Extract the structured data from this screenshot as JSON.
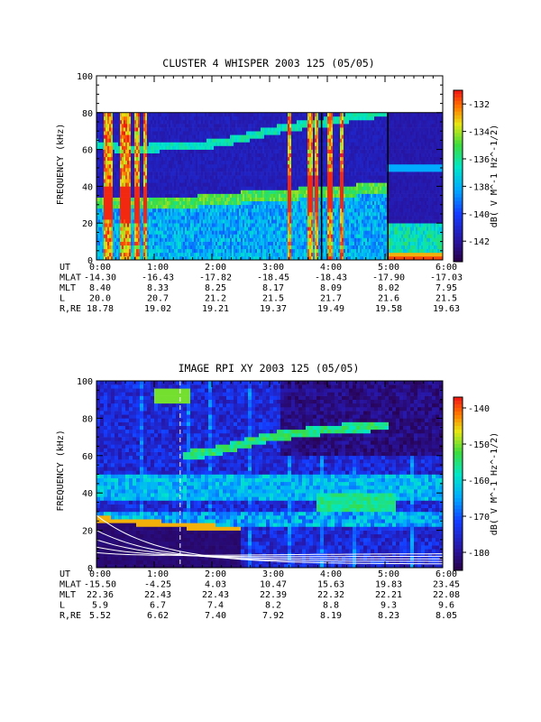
{
  "chart_data": [
    {
      "type": "heatmap",
      "title": "CLUSTER 4 WHISPER 2003 125 (05/05)",
      "ylabel": "FREQUENCY (kHz)",
      "xlabel": "",
      "ylim": [
        0,
        100
      ],
      "xlim": [
        0,
        6
      ],
      "y_ticks": [
        "0",
        "20",
        "40",
        "60",
        "80",
        "100"
      ],
      "x_ticks": [
        "0:00",
        "1:00",
        "2:00",
        "3:00",
        "4:00",
        "5:00",
        "6:00"
      ],
      "data_ymax": 80,
      "colorbar": {
        "label": "dB( V M^-1 Hz^-1/2)",
        "range": [
          -143.5,
          -131
        ],
        "ticks": [
          "-132",
          "-134",
          "-136",
          "-138",
          "-140",
          "-142"
        ],
        "tick_values": [
          -132,
          -134,
          -136,
          -138,
          -140,
          -142
        ]
      },
      "table": {
        "row_labels": [
          "UT",
          "MLAT",
          "MLT",
          "L",
          "R,RE"
        ],
        "rows": [
          [
            "0:00",
            "1:00",
            "2:00",
            "3:00",
            "4:00",
            "5:00",
            "6:00"
          ],
          [
            "-14.30",
            "-16.43",
            "-17.82",
            "-18.45",
            "-18.43",
            "-17.90",
            "-17.03"
          ],
          [
            "8.40",
            "8.33",
            "8.25",
            "8.17",
            "8.09",
            "8.02",
            "7.95"
          ],
          [
            "20.0",
            "20.7",
            "21.2",
            "21.5",
            "21.7",
            "21.6",
            "21.5"
          ],
          [
            "18.78",
            "19.02",
            "19.21",
            "19.37",
            "19.49",
            "19.58",
            "19.63"
          ]
        ]
      },
      "features": {
        "upper_band": [
          [
            0,
            63
          ],
          [
            0.5,
            60
          ],
          [
            1,
            61
          ],
          [
            1.5,
            62
          ],
          [
            2,
            63
          ],
          [
            2.5,
            66
          ],
          [
            3,
            70
          ],
          [
            3.5,
            73
          ],
          [
            4,
            75
          ],
          [
            4.5,
            78
          ],
          [
            5,
            80
          ]
        ],
        "upper_band_late": [
          [
            5.0,
            50
          ],
          [
            6,
            50
          ]
        ],
        "lower_band": [
          [
            0,
            31
          ],
          [
            0.5,
            31
          ],
          [
            1,
            30
          ],
          [
            1.5,
            31
          ],
          [
            2,
            33
          ],
          [
            2.5,
            34
          ],
          [
            3,
            35
          ],
          [
            3.5,
            36
          ],
          [
            4,
            37
          ],
          [
            4.5,
            38
          ],
          [
            5,
            39
          ]
        ],
        "vertical_bursts": [
          0.17,
          0.25,
          0.45,
          0.55,
          0.7,
          0.85,
          3.35,
          3.7,
          3.82,
          4.05,
          4.25
        ],
        "black_lines": [
          3.9,
          5.05
        ]
      }
    },
    {
      "type": "heatmap",
      "title": "IMAGE RPI XY 2003 125 (05/05)",
      "ylabel": "FREQUENCY (kHz)",
      "xlabel": "",
      "ylim": [
        0,
        100
      ],
      "xlim": [
        0,
        6
      ],
      "y_ticks": [
        "0",
        "20",
        "40",
        "60",
        "80",
        "100"
      ],
      "x_ticks": [
        "0:00",
        "1:00",
        "2:00",
        "3:00",
        "4:00",
        "5:00",
        "6:00"
      ],
      "colorbar": {
        "label": "dB( V M^-1 Hz^-1/2)",
        "range": [
          -185,
          -137
        ],
        "ticks": [
          "-140",
          "-150",
          "-160",
          "-170",
          "-180"
        ],
        "tick_values": [
          -140,
          -150,
          -160,
          -170,
          -180
        ]
      },
      "table": {
        "row_labels": [
          "UT",
          "MLAT",
          "MLT",
          "L",
          "R,RE"
        ],
        "rows": [
          [
            "0:00",
            "1:00",
            "2:00",
            "3:00",
            "4:00",
            "5:00",
            "6:00"
          ],
          [
            "-15.50",
            "-4.25",
            "4.03",
            "10.47",
            "15.63",
            "19.83",
            "23.45"
          ],
          [
            "22.36",
            "22.43",
            "22.43",
            "22.39",
            "22.32",
            "22.21",
            "22.08"
          ],
          [
            "5.9",
            "6.7",
            "7.4",
            "8.2",
            "8.8",
            "9.3",
            "9.6"
          ],
          [
            "5.52",
            "6.62",
            "7.40",
            "7.92",
            "8.19",
            "8.23",
            "8.05"
          ]
        ]
      },
      "features": {
        "upper_band": [
          [
            1.5,
            60
          ],
          [
            2,
            62
          ],
          [
            2.5,
            66
          ],
          [
            3,
            70
          ],
          [
            3.5,
            72
          ],
          [
            4,
            74
          ],
          [
            4.5,
            75
          ],
          [
            5,
            76
          ]
        ],
        "dashed_line_x": 1.45,
        "white_curves": [
          28,
          20,
          15,
          11,
          8
        ]
      }
    }
  ]
}
